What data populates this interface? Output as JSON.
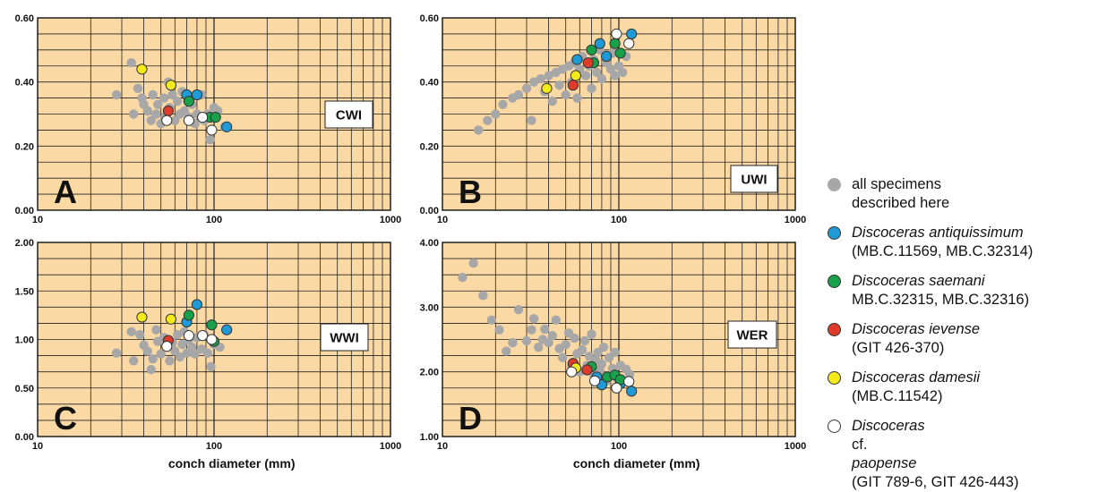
{
  "chart_data": [
    {
      "type": "scatter",
      "panel": "A",
      "tag": "CWI",
      "xscale": "log",
      "xlim": [
        10,
        1000
      ],
      "ylim": [
        0,
        0.6
      ],
      "yticks": [
        "0.00",
        "0.20",
        "0.40",
        "0.60"
      ],
      "xticks": [
        "10",
        "100",
        "1000"
      ],
      "xlabel": "",
      "series": [
        {
          "key": "all",
          "color": "#a7a7a7",
          "points": [
            [
              28,
              0.36
            ],
            [
              34,
              0.46
            ],
            [
              35,
              0.3
            ],
            [
              37,
              0.38
            ],
            [
              39,
              0.35
            ],
            [
              40,
              0.33
            ],
            [
              42,
              0.31
            ],
            [
              44,
              0.28
            ],
            [
              45,
              0.36
            ],
            [
              47,
              0.3
            ],
            [
              48,
              0.33
            ],
            [
              50,
              0.27
            ],
            [
              52,
              0.35
            ],
            [
              53,
              0.29
            ],
            [
              55,
              0.4
            ],
            [
              56,
              0.32
            ],
            [
              58,
              0.36
            ],
            [
              60,
              0.28
            ],
            [
              62,
              0.34
            ],
            [
              64,
              0.3
            ],
            [
              66,
              0.37
            ],
            [
              68,
              0.31
            ],
            [
              70,
              0.36
            ],
            [
              72,
              0.29
            ],
            [
              75,
              0.33
            ],
            [
              78,
              0.27
            ],
            [
              80,
              0.3
            ],
            [
              85,
              0.36
            ],
            [
              88,
              0.28
            ],
            [
              92,
              0.3
            ],
            [
              95,
              0.22
            ],
            [
              100,
              0.32
            ],
            [
              105,
              0.31
            ],
            [
              115,
              0.26
            ]
          ]
        },
        {
          "key": "antiquissimum",
          "color": "#1e9bd7",
          "points": [
            [
              70,
              0.36
            ],
            [
              80,
              0.36
            ],
            [
              118,
              0.26
            ]
          ]
        },
        {
          "key": "saemani",
          "color": "#19a04a",
          "points": [
            [
              72,
              0.34
            ],
            [
              95,
              0.29
            ],
            [
              102,
              0.29
            ]
          ]
        },
        {
          "key": "ievense",
          "color": "#e03a2a",
          "points": [
            [
              55,
              0.31
            ]
          ]
        },
        {
          "key": "damesii",
          "color": "#f2ea1a",
          "points": [
            [
              39,
              0.44
            ],
            [
              57,
              0.39
            ]
          ]
        },
        {
          "key": "paopense",
          "color": "#ffffff",
          "points": [
            [
              54,
              0.28
            ],
            [
              72,
              0.28
            ],
            [
              86,
              0.29
            ],
            [
              97,
              0.25
            ]
          ]
        }
      ]
    },
    {
      "type": "scatter",
      "panel": "B",
      "tag": "UWI",
      "xscale": "log",
      "xlim": [
        10,
        1000
      ],
      "ylim": [
        0,
        0.6
      ],
      "yticks": [
        "0.00",
        "0.20",
        "0.40",
        "0.60"
      ],
      "xticks": [
        "10",
        "100",
        "1000"
      ],
      "xlabel": "",
      "series": [
        {
          "key": "all",
          "color": "#a7a7a7",
          "points": [
            [
              16,
              0.25
            ],
            [
              18,
              0.28
            ],
            [
              20,
              0.3
            ],
            [
              22,
              0.33
            ],
            [
              25,
              0.35
            ],
            [
              27,
              0.36
            ],
            [
              30,
              0.38
            ],
            [
              32,
              0.28
            ],
            [
              33,
              0.4
            ],
            [
              36,
              0.41
            ],
            [
              38,
              0.37
            ],
            [
              40,
              0.42
            ],
            [
              42,
              0.34
            ],
            [
              44,
              0.43
            ],
            [
              46,
              0.39
            ],
            [
              48,
              0.44
            ],
            [
              50,
              0.36
            ],
            [
              52,
              0.45
            ],
            [
              54,
              0.4
            ],
            [
              56,
              0.46
            ],
            [
              58,
              0.35
            ],
            [
              60,
              0.44
            ],
            [
              62,
              0.48
            ],
            [
              65,
              0.42
            ],
            [
              68,
              0.45
            ],
            [
              70,
              0.38
            ],
            [
              72,
              0.47
            ],
            [
              75,
              0.43
            ],
            [
              78,
              0.5
            ],
            [
              80,
              0.41
            ],
            [
              85,
              0.46
            ],
            [
              90,
              0.44
            ],
            [
              92,
              0.49
            ],
            [
              95,
              0.42
            ],
            [
              100,
              0.45
            ],
            [
              105,
              0.43
            ],
            [
              110,
              0.48
            ]
          ]
        },
        {
          "key": "antiquissimum",
          "color": "#1e9bd7",
          "points": [
            [
              58,
              0.47
            ],
            [
              78,
              0.52
            ],
            [
              85,
              0.48
            ],
            [
              118,
              0.55
            ]
          ]
        },
        {
          "key": "saemani",
          "color": "#19a04a",
          "points": [
            [
              70,
              0.5
            ],
            [
              72,
              0.46
            ],
            [
              95,
              0.52
            ],
            [
              102,
              0.49
            ]
          ]
        },
        {
          "key": "ievense",
          "color": "#e03a2a",
          "points": [
            [
              55,
              0.39
            ],
            [
              67,
              0.46
            ]
          ]
        },
        {
          "key": "damesii",
          "color": "#f2ea1a",
          "points": [
            [
              39,
              0.38
            ],
            [
              57,
              0.42
            ]
          ]
        },
        {
          "key": "paopense",
          "color": "#ffffff",
          "points": [
            [
              97,
              0.55
            ],
            [
              114,
              0.52
            ]
          ]
        }
      ]
    },
    {
      "type": "scatter",
      "panel": "C",
      "tag": "WWI",
      "xscale": "log",
      "xlim": [
        10,
        1000
      ],
      "ylim": [
        0,
        2
      ],
      "yticks": [
        "0.00",
        "0.50",
        "1.00",
        "1.50",
        "2.00"
      ],
      "xticks": [
        "10",
        "100",
        "1000"
      ],
      "xlabel": "conch diameter (mm)",
      "series": [
        {
          "key": "all",
          "color": "#a7a7a7",
          "points": [
            [
              28,
              0.86
            ],
            [
              34,
              1.08
            ],
            [
              35,
              0.78
            ],
            [
              38,
              1.05
            ],
            [
              40,
              0.94
            ],
            [
              42,
              0.88
            ],
            [
              44,
              0.69
            ],
            [
              45,
              0.8
            ],
            [
              47,
              1.1
            ],
            [
              48,
              0.98
            ],
            [
              50,
              0.85
            ],
            [
              52,
              1.02
            ],
            [
              54,
              0.92
            ],
            [
              56,
              0.78
            ],
            [
              58,
              0.97
            ],
            [
              60,
              0.88
            ],
            [
              62,
              1.05
            ],
            [
              64,
              0.82
            ],
            [
              66,
              0.95
            ],
            [
              68,
              1.08
            ],
            [
              70,
              0.86
            ],
            [
              72,
              1.0
            ],
            [
              75,
              0.92
            ],
            [
              78,
              0.85
            ],
            [
              80,
              1.02
            ],
            [
              85,
              0.9
            ],
            [
              88,
              1.05
            ],
            [
              92,
              0.86
            ],
            [
              96,
              0.72
            ],
            [
              100,
              0.95
            ],
            [
              108,
              0.92
            ]
          ]
        },
        {
          "key": "antiquissimum",
          "color": "#1e9bd7",
          "points": [
            [
              70,
              1.18
            ],
            [
              80,
              1.36
            ],
            [
              118,
              1.1
            ]
          ]
        },
        {
          "key": "saemani",
          "color": "#19a04a",
          "points": [
            [
              72,
              1.25
            ],
            [
              97,
              1.15
            ],
            [
              100,
              0.98
            ]
          ]
        },
        {
          "key": "ievense",
          "color": "#e03a2a",
          "points": [
            [
              55,
              0.99
            ]
          ]
        },
        {
          "key": "damesii",
          "color": "#f2ea1a",
          "points": [
            [
              39,
              1.23
            ],
            [
              57,
              1.21
            ]
          ]
        },
        {
          "key": "paopense",
          "color": "#ffffff",
          "points": [
            [
              54,
              0.93
            ],
            [
              72,
              1.04
            ],
            [
              86,
              1.04
            ],
            [
              97,
              1.0
            ]
          ]
        }
      ]
    },
    {
      "type": "scatter",
      "panel": "D",
      "tag": "WER",
      "xscale": "log",
      "xlim": [
        10,
        1000
      ],
      "ylim": [
        1,
        4
      ],
      "yticks": [
        "1.00",
        "2.00",
        "3.00",
        "4.00"
      ],
      "xticks": [
        "10",
        "100",
        "1000"
      ],
      "xlabel": "conch diameter (mm)",
      "series": [
        {
          "key": "all",
          "color": "#a7a7a7",
          "points": [
            [
              13,
              3.46
            ],
            [
              15,
              3.68
            ],
            [
              17,
              3.18
            ],
            [
              19,
              2.8
            ],
            [
              21,
              2.65
            ],
            [
              23,
              2.32
            ],
            [
              25,
              2.45
            ],
            [
              27,
              2.96
            ],
            [
              30,
              2.48
            ],
            [
              32,
              2.65
            ],
            [
              33,
              2.82
            ],
            [
              35,
              2.38
            ],
            [
              37,
              2.5
            ],
            [
              38,
              2.66
            ],
            [
              40,
              2.45
            ],
            [
              42,
              2.56
            ],
            [
              44,
              2.8
            ],
            [
              46,
              2.36
            ],
            [
              48,
              2.22
            ],
            [
              50,
              2.42
            ],
            [
              52,
              2.6
            ],
            [
              54,
              2.08
            ],
            [
              56,
              2.52
            ],
            [
              58,
              2.28
            ],
            [
              60,
              2.0
            ],
            [
              62,
              2.34
            ],
            [
              64,
              2.48
            ],
            [
              66,
              2.1
            ],
            [
              68,
              2.24
            ],
            [
              70,
              2.58
            ],
            [
              72,
              1.95
            ],
            [
              74,
              2.18
            ],
            [
              76,
              2.3
            ],
            [
              78,
              2.02
            ],
            [
              80,
              2.12
            ],
            [
              82,
              2.38
            ],
            [
              85,
              1.86
            ],
            [
              88,
              2.22
            ],
            [
              92,
              2.05
            ],
            [
              95,
              2.3
            ],
            [
              98,
              1.9
            ],
            [
              102,
              2.1
            ],
            [
              110,
              2.04
            ],
            [
              115,
              1.96
            ]
          ]
        },
        {
          "key": "antiquissimum",
          "color": "#1e9bd7",
          "points": [
            [
              75,
              1.92
            ],
            [
              80,
              1.8
            ],
            [
              102,
              1.82
            ],
            [
              118,
              1.7
            ]
          ]
        },
        {
          "key": "saemani",
          "color": "#19a04a",
          "points": [
            [
              70,
              2.08
            ],
            [
              86,
              1.92
            ],
            [
              95,
              1.95
            ],
            [
              102,
              1.88
            ]
          ]
        },
        {
          "key": "ievense",
          "color": "#e03a2a",
          "points": [
            [
              55,
              2.13
            ],
            [
              66,
              2.03
            ]
          ]
        },
        {
          "key": "damesii",
          "color": "#f2ea1a",
          "points": [
            [
              57,
              2.06
            ]
          ]
        },
        {
          "key": "paopense",
          "color": "#ffffff",
          "points": [
            [
              54,
              2.0
            ],
            [
              73,
              1.86
            ],
            [
              97,
              1.75
            ],
            [
              114,
              1.85
            ]
          ]
        }
      ]
    }
  ],
  "legend": [
    {
      "key": "all",
      "color": "#a7a7a7",
      "line1_italic": "",
      "line1_plain": "all specimens",
      "line2": "described here"
    },
    {
      "key": "antiquissimum",
      "color": "#1e9bd7",
      "line1_italic": "Discoceras antiquissimum",
      "line1_plain": "",
      "line2": "(MB.C.11569, MB.C.32314)"
    },
    {
      "key": "saemani",
      "color": "#19a04a",
      "line1_italic": "Discoceras saemani",
      "line1_plain": "",
      "line2": "MB.C.32315, MB.C.32316)"
    },
    {
      "key": "ievense",
      "color": "#e03a2a",
      "line1_italic": "Discoceras ievense",
      "line1_plain": "",
      "line2": "(GIT 426-370)"
    },
    {
      "key": "damesii",
      "color": "#f2ea1a",
      "line1_italic": "Discoceras damesii",
      "line1_plain": "",
      "line2": "(MB.C.11542)"
    },
    {
      "key": "paopense",
      "color": "#ffffff",
      "line1_italic": "Discoceras",
      "line1_plain": " cf. ",
      "line1_italic2": "paopense",
      "line2": "(GIT 789-6, GIT 426-443)"
    }
  ]
}
